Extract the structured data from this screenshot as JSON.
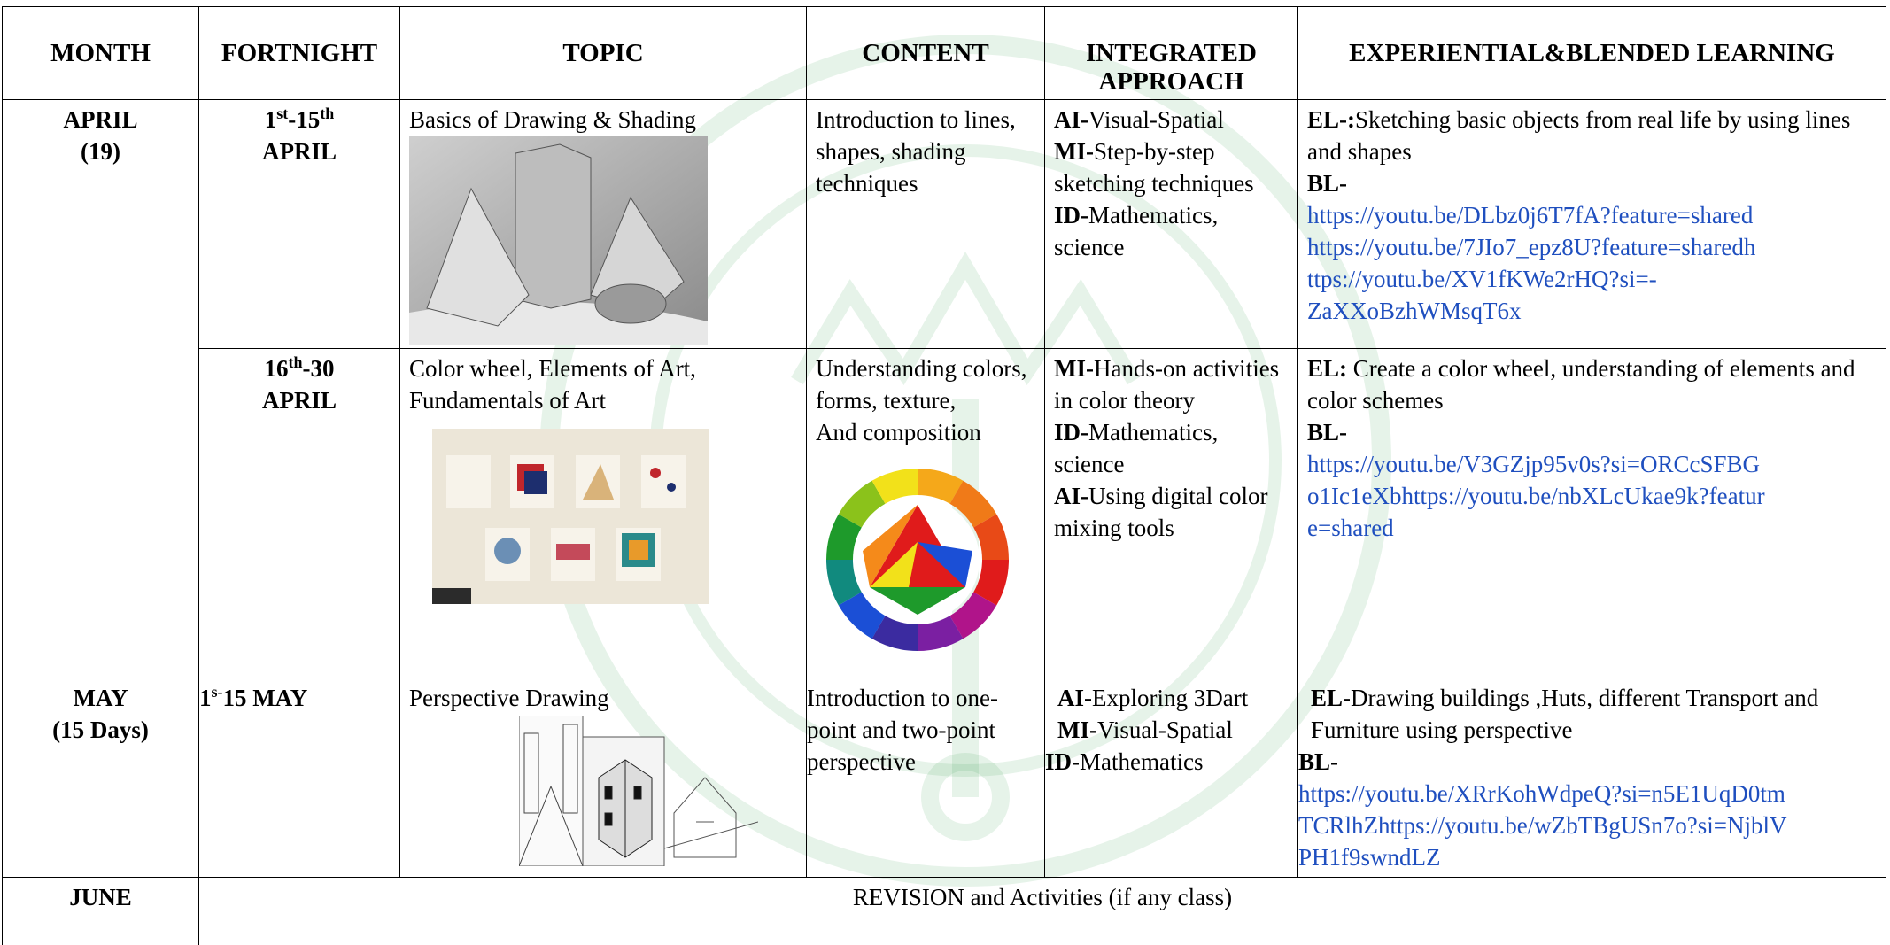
{
  "table": {
    "headers": [
      "MONTH",
      "FORTNIGHT",
      "TOPIC",
      "CONTENT",
      "INTEGRATED APPROACH",
      "EXPERIENTIAL&BLENDED LEARNING"
    ],
    "rows": [
      {
        "month": [
          "APRIL",
          "(19)"
        ],
        "fortnight": {
          "parts": [
            {
              "text": "1"
            },
            {
              "sup": "st"
            },
            {
              "text": "-15"
            },
            {
              "sup": "th"
            }
          ],
          "line2": "APRIL"
        },
        "topic": [
          "Basics of Drawing & Shading"
        ],
        "content": [
          "Introduction to lines, shapes, shading techniques"
        ],
        "approach": [
          {
            "label": "AI-",
            "text": "Visual-Spatial"
          },
          {
            "label": "MI-",
            "text": "Step-by-step sketching techniques"
          },
          {
            "label": "ID-",
            "text": "Mathematics, science"
          }
        ],
        "learning": {
          "el_label": "EL-:",
          "el_text": "Sketching basic objects from real life by using lines and shapes",
          "bl_label": "BL-",
          "links": [
            "https://youtu.be/DLbz0j6T7fA?feature=shared",
            "https://youtu.be/7JIo7_epz8U?feature=sharedh",
            "ttps://youtu.be/XV1fKWe2rHQ?si=-",
            "ZaXXoBzhWMsqT6x"
          ]
        }
      },
      {
        "fortnight": {
          "parts": [
            {
              "text": "16"
            },
            {
              "sup": "th"
            },
            {
              "text": "-30"
            }
          ],
          "line2": "APRIL"
        },
        "topic": [
          "Color wheel, Elements of Art,",
          "Fundamentals of Art"
        ],
        "content": [
          "Understanding colors, forms, texture,",
          "And composition"
        ],
        "approach": [
          {
            "label": "MI-",
            "text": "Hands-on activities in color theory"
          },
          {
            "label": "ID-",
            "text": "Mathematics, science"
          },
          {
            "label": "AI-",
            "text": "Using digital color mixing tools"
          }
        ],
        "learning": {
          "el_label": "EL:",
          "el_text": "Create a color wheel, understanding of elements and color schemes",
          "bl_label": "BL-",
          "links": [
            "https://youtu.be/V3GZjp95v0s?si=ORCcSFBG",
            "o1Ic1eXbhttps://youtu.be/nbXLcUkae9k?featur",
            "e=shared"
          ]
        }
      },
      {
        "month": [
          "MAY",
          "(15 Days)"
        ],
        "fortnight": {
          "parts": [
            {
              "text": "1"
            },
            {
              "sup": "s-"
            },
            {
              "text": "15 MAY"
            }
          ]
        },
        "topic": [
          "Perspective Drawing"
        ],
        "content": [
          "Introduction to one-point and two-point perspective"
        ],
        "approach": [
          {
            "label": "AI-",
            "text": "Exploring 3Dart"
          },
          {
            "label": "MI-",
            "text": "Visual-Spatial"
          },
          {
            "label": "ID-",
            "text": "Mathematics"
          }
        ],
        "learning": {
          "el_label": "EL-",
          "el_text": "Drawing buildings ,Huts, different Transport and Furniture using perspective",
          "bl_label": "BL-",
          "links": [
            "https://youtu.be/XRrKohWdpeQ?si=n5E1UqD0tm",
            "TCRlhZhttps://youtu.be/wZbTBgUSn7o?si=NjblV",
            "PH1f9swndLZ"
          ]
        }
      },
      {
        "month": [
          "JUNE"
        ],
        "note": "REVISION and Activities (if any class)"
      }
    ]
  }
}
